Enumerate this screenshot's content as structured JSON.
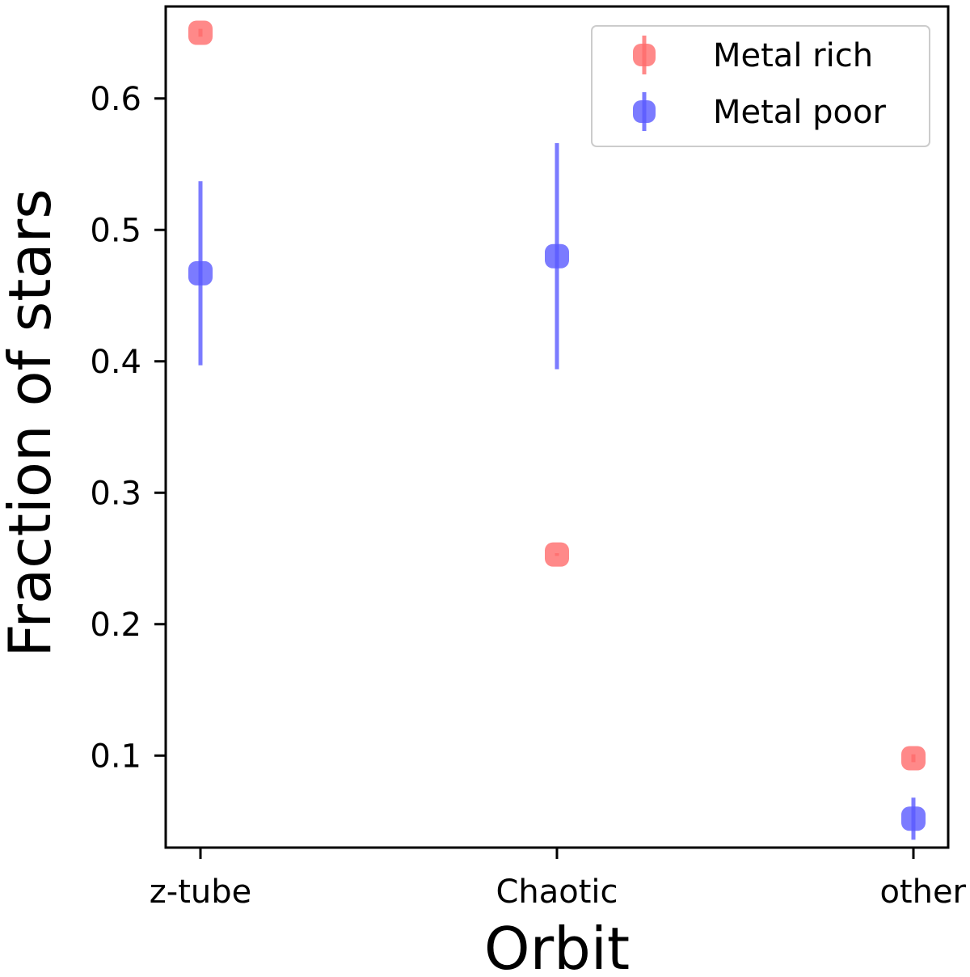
{
  "chart_data": {
    "type": "scatter",
    "title": "",
    "xlabel": "Orbit",
    "ylabel": "Fraction of stars",
    "categories": [
      "z-tube",
      "Chaotic",
      "other"
    ],
    "ylim": [
      0.03,
      0.67
    ],
    "yticks": [
      0.1,
      0.2,
      0.3,
      0.4,
      0.5,
      0.6
    ],
    "ytick_labels": [
      "0.1",
      "0.2",
      "0.3",
      "0.4",
      "0.5",
      "0.6"
    ],
    "grid": false,
    "legend_position": "top-right",
    "series": [
      {
        "name": "Metal rich",
        "color": "#ff6b6b",
        "values": [
          0.65,
          0.253,
          0.098
        ],
        "errors": [
          0.003,
          0.001,
          0.003
        ]
      },
      {
        "name": "Metal poor",
        "color": "#5a5aff",
        "values": [
          0.467,
          0.48,
          0.052
        ],
        "errors": [
          0.07,
          0.086,
          0.016
        ]
      }
    ]
  }
}
